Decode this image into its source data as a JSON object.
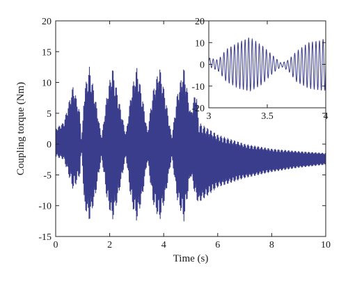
{
  "chart_data": [
    {
      "type": "line",
      "panel": "main",
      "title": "",
      "xlabel": "Time (s)",
      "ylabel": "Coupling torque (Nm)",
      "xlim": [
        0,
        10
      ],
      "ylim": [
        -15,
        20
      ],
      "xticks": [
        "0",
        "2",
        "4",
        "6",
        "8",
        "10"
      ],
      "yticks": [
        "-15",
        "-10",
        "-5",
        "0",
        "5",
        "10",
        "15",
        "20"
      ],
      "grid": false,
      "legend": "none",
      "series": [
        {
          "color": "#3a3c8c",
          "style": "dense oscillation",
          "envelope": {
            "t": [
              0.0,
              0.3,
              0.65,
              0.9,
              0.95,
              1.0,
              1.05,
              1.25,
              1.45,
              1.7,
              1.9,
              2.1,
              2.3,
              2.6,
              2.8,
              3.0,
              3.2,
              3.4,
              3.6,
              3.85,
              4.05,
              4.3,
              4.5,
              4.75,
              5.0,
              5.2,
              5.3,
              6.0,
              7.0,
              8.0,
              9.0,
              10.0
            ],
            "upper": [
              2.5,
              3.5,
              9.5,
              5.0,
              0.5,
              3.0,
              8.5,
              12.5,
              8.0,
              1.0,
              8.0,
              12.5,
              8.0,
              1.5,
              8.5,
              12.5,
              8.0,
              2.0,
              8.5,
              12.5,
              8.0,
              1.0,
              8.0,
              12.5,
              5.0,
              9.0,
              3.5,
              1.5,
              0.0,
              -0.8,
              -1.2,
              -1.5
            ],
            "lower": [
              -2.0,
              -2.5,
              -7.5,
              -5.0,
              -0.5,
              -4.0,
              -10.0,
              -12.5,
              -9.0,
              -2.0,
              -9.0,
              -12.5,
              -9.0,
              -2.0,
              -9.5,
              -12.5,
              -9.0,
              -2.5,
              -9.5,
              -12.5,
              -9.0,
              -2.0,
              -9.0,
              -12.5,
              -5.0,
              -9.0,
              -9.5,
              -7.0,
              -5.5,
              -4.5,
              -3.8,
              -3.3
            ]
          }
        }
      ]
    },
    {
      "type": "line",
      "panel": "inset",
      "title": "",
      "xlabel": "",
      "ylabel": "",
      "xlim": [
        3,
        4
      ],
      "ylim": [
        -20,
        20
      ],
      "xticks": [
        "3",
        "3.5",
        "4"
      ],
      "yticks": [
        "-20",
        "-10",
        "0",
        "10",
        "20"
      ],
      "grid": false,
      "legend": "none",
      "series": [
        {
          "color": "#3a3c8c",
          "style": "oscillation",
          "envelope": {
            "t": [
              3.0,
              3.08,
              3.15,
              3.25,
              3.35,
              3.45,
              3.55,
              3.62,
              3.68,
              3.75,
              3.85,
              3.95,
              4.0
            ],
            "upper": [
              3.0,
              2.0,
              7.0,
              10.0,
              12.5,
              9.0,
              4.0,
              0.5,
              2.0,
              6.0,
              10.0,
              11.0,
              12.0
            ],
            "lower": [
              -1.0,
              -3.0,
              -8.0,
              -11.0,
              -12.5,
              -9.5,
              -4.0,
              -1.0,
              -3.0,
              -8.0,
              -11.0,
              -12.0,
              -12.0
            ]
          }
        }
      ]
    }
  ]
}
